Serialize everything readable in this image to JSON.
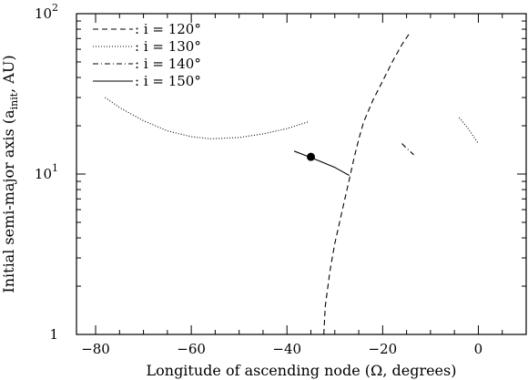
{
  "chart_data": {
    "type": "line",
    "xlabel": "Longitude of ascending node (Ω, degrees)",
    "ylabel": "Initial semi-major axis (a",
    "ylabel_subscript": "init",
    "ylabel_suffix": ", AU)",
    "xlim": [
      -84,
      10
    ],
    "ylim": [
      1,
      100
    ],
    "y_scale": "log",
    "x_ticks": [
      -80,
      -60,
      -40,
      -20,
      0
    ],
    "x_tick_labels": [
      "−80",
      "−60",
      "−40",
      "−20",
      "0"
    ],
    "y_ticks": [
      {
        "value": 1,
        "base": "1",
        "exp": ""
      },
      {
        "value": 10,
        "base": "10",
        "exp": "1"
      },
      {
        "value": 100,
        "base": "10",
        "exp": "2"
      }
    ],
    "grid": false,
    "legend_position": "top-left",
    "series": [
      {
        "name": ": i = 120°",
        "dash": "dashed",
        "color": "#000000",
        "points": [
          [
            -32.3,
            1.0
          ],
          [
            -32.0,
            1.5
          ],
          [
            -31.0,
            2.5
          ],
          [
            -30.0,
            3.7
          ],
          [
            -29.0,
            5.0
          ],
          [
            -28.0,
            6.8
          ],
          [
            -27.0,
            9.2
          ],
          [
            -26.0,
            12.5
          ],
          [
            -25.0,
            16.5
          ],
          [
            -24.0,
            21.0
          ],
          [
            -22.0,
            29.0
          ],
          [
            -20.0,
            38.0
          ],
          [
            -18.0,
            50.0
          ],
          [
            -16.0,
            64.0
          ],
          [
            -14.2,
            77.0
          ]
        ]
      },
      {
        "name": ": i = 130°",
        "dash": "dotted",
        "color": "#000000",
        "segments": [
          [
            [
              -78.0,
              30.0
            ],
            [
              -75.0,
              26.0
            ],
            [
              -70.0,
              21.5
            ],
            [
              -65.0,
              18.6
            ],
            [
              -60.0,
              17.1
            ],
            [
              -56.0,
              16.6
            ],
            [
              -50.0,
              16.9
            ],
            [
              -45.0,
              17.8
            ],
            [
              -40.0,
              19.2
            ],
            [
              -35.5,
              21.2
            ]
          ],
          [
            [
              -4.0,
              22.5
            ],
            [
              -2.0,
              19.0
            ],
            [
              0.0,
              15.5
            ]
          ]
        ]
      },
      {
        "name": ": i = 140°",
        "dash": "dash-dot",
        "color": "#000000",
        "points": [
          [
            -16.0,
            15.5
          ],
          [
            -15.0,
            14.5
          ],
          [
            -13.5,
            13.2
          ]
        ]
      },
      {
        "name": ": i = 150°",
        "dash": "solid",
        "color": "#000000",
        "points": [
          [
            -38.5,
            13.9
          ],
          [
            -36.0,
            13.0
          ],
          [
            -33.0,
            12.0
          ],
          [
            -30.0,
            11.0
          ],
          [
            -27.0,
            9.8
          ]
        ]
      }
    ],
    "markers": [
      {
        "x": -35.0,
        "y": 12.8,
        "shape": "filled-circle"
      }
    ]
  }
}
